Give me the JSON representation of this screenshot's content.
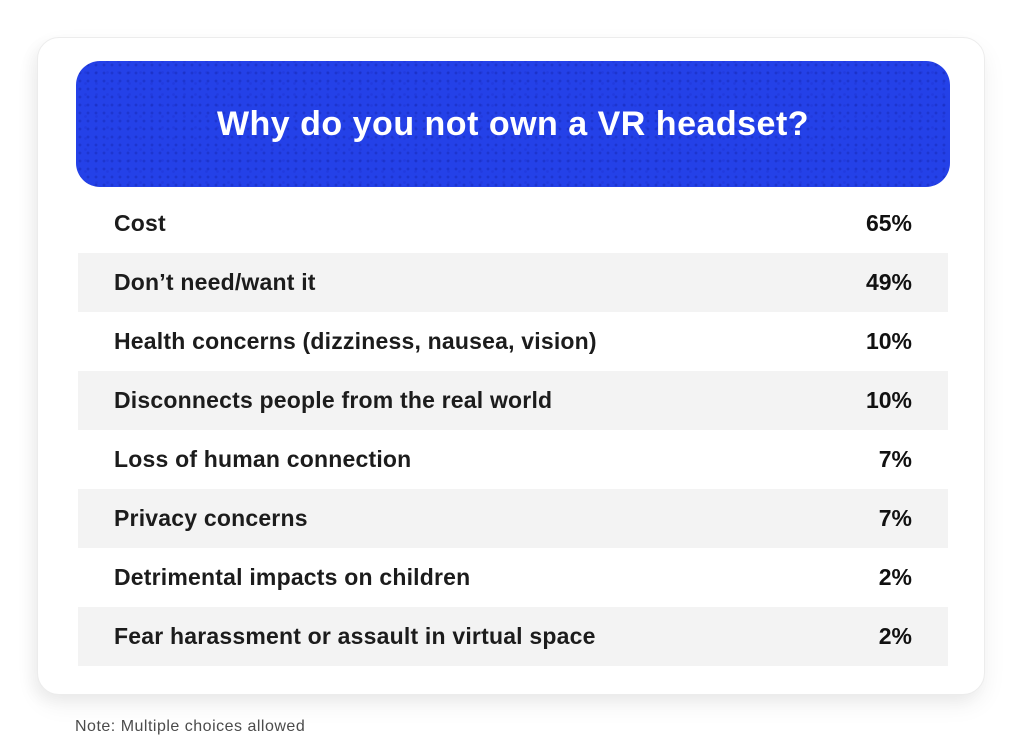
{
  "accent_color": "#2441e8",
  "row_alt_color": "#f3f3f3",
  "header": {
    "title": "Why do you not own a VR headset?"
  },
  "rows": [
    {
      "label": "Cost",
      "value": "65%"
    },
    {
      "label": "Don’t need/want it",
      "value": "49%"
    },
    {
      "label": "Health concerns (dizziness, nausea, vision)",
      "value": "10%"
    },
    {
      "label": "Disconnects people from the real world",
      "value": "10%"
    },
    {
      "label": "Loss of human connection",
      "value": "7%"
    },
    {
      "label": "Privacy concerns",
      "value": "7%"
    },
    {
      "label": "Detrimental impacts on children",
      "value": "2%"
    },
    {
      "label": "Fear harassment or assault in virtual space",
      "value": "2%"
    }
  ],
  "note": "Note: Multiple choices allowed",
  "chart_data": {
    "type": "table",
    "title": "Why do you not own a VR headset?",
    "categories": [
      "Cost",
      "Don’t need/want it",
      "Health concerns (dizziness, nausea, vision)",
      "Disconnects people from the real world",
      "Loss of human connection",
      "Privacy concerns",
      "Detrimental impacts on children",
      "Fear harassment or assault in virtual space"
    ],
    "values": [
      65,
      49,
      10,
      10,
      7,
      7,
      2,
      2
    ],
    "unit": "%",
    "note": "Note: Multiple choices allowed",
    "legend_position": "none",
    "grid": false
  }
}
